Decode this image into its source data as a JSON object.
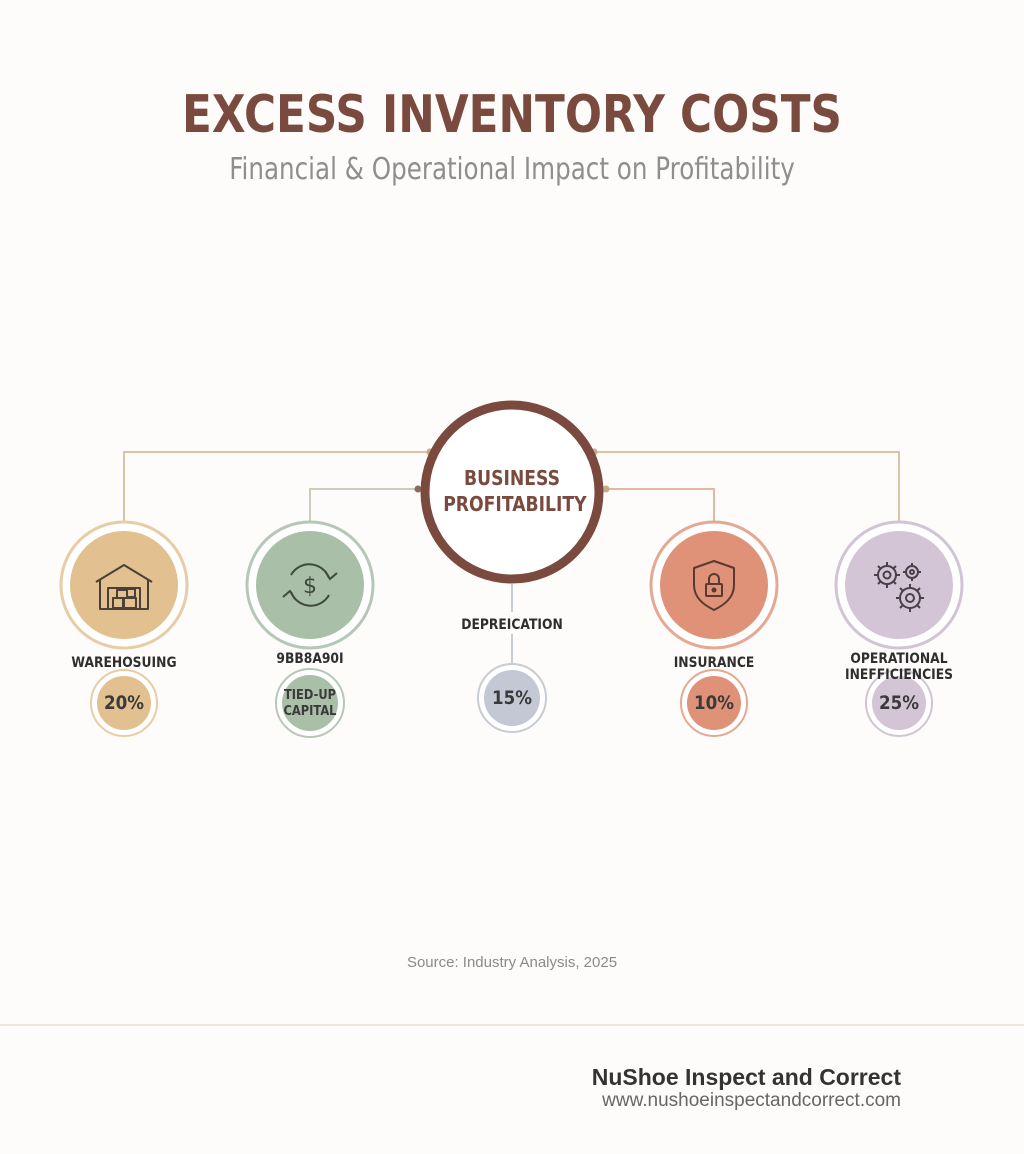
{
  "header": {
    "title": "EXCESS INVENTORY COSTS",
    "subtitle": "Financial & Operational Impact on Profitability"
  },
  "center": {
    "label_line1": "BUSINESS",
    "label_line2": "PROFITABILITY",
    "color": "#7b4a3f"
  },
  "nodes": [
    {
      "id": "warehousing",
      "label": "WAREHOSUING",
      "percent": "20%",
      "icon": "warehouse-icon",
      "color": "#e2c08f",
      "ring": "#e6cda6"
    },
    {
      "id": "capital",
      "label": "9BB8A90I",
      "percent_line1": "TIED-UP",
      "percent_line2": "CAPITAL",
      "icon": "dollar-cycle-icon",
      "color": "#a9bfa8",
      "ring": "#b6c8b5"
    },
    {
      "id": "depreciation",
      "label": "DEPREICATION",
      "percent": "15%",
      "icon": "",
      "color": "#c3c8d4",
      "ring": "#c7cbd3"
    },
    {
      "id": "insurance",
      "label": "INSURANCE",
      "percent": "10%",
      "icon": "shield-lock-icon",
      "color": "#df9277",
      "ring": "#e4a893"
    },
    {
      "id": "operational",
      "label_line1": "OPERATIONAL",
      "label_line2": "INEFFICIENCIES",
      "percent": "25%",
      "icon": "gears-icon",
      "color": "#d4c5d6",
      "ring": "#d2c4d4"
    }
  ],
  "source": "Source: Industry Analysis, 2025",
  "footer": {
    "brand": "NuShoe Inspect and Correct",
    "url": "www.nushoeinspectandcorrect.com"
  }
}
